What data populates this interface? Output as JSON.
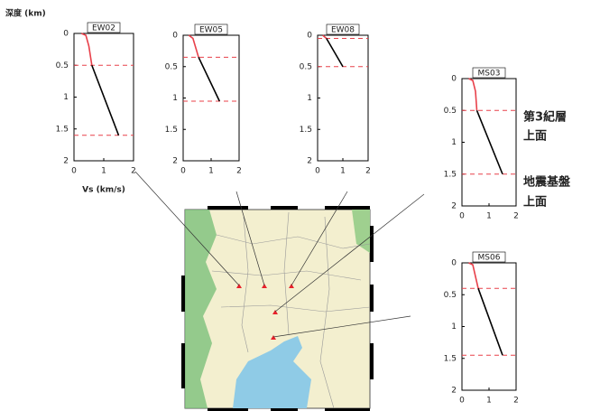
{
  "chart_data": [
    {
      "type": "line",
      "title": "EW02",
      "ylabel": "深度 (km)",
      "xlabel": "Vs (km/s)",
      "x": [
        0.25,
        0.4,
        0.5,
        0.6,
        1.5
      ],
      "series": [
        {
          "color": "#e8404a",
          "values": [
            0,
            0.03,
            0.2,
            0.5,
            null
          ]
        },
        {
          "color": "#000000",
          "values": [
            null,
            null,
            null,
            0.5,
            1.6
          ]
        }
      ],
      "xlim": [
        0,
        2
      ],
      "xticks": [
        0,
        1,
        2
      ],
      "ylim": [
        0,
        2
      ],
      "yticks": [
        0,
        0.5,
        1,
        1.5,
        2
      ],
      "y_inverted": true,
      "hlines": [
        0.5,
        1.6
      ],
      "hline_color": "#e8404a"
    },
    {
      "type": "line",
      "title": "EW05",
      "x": [
        0.2,
        0.35,
        0.55,
        1.3
      ],
      "series": [
        {
          "color": "#e8404a",
          "values": [
            0,
            0.05,
            0.35,
            null
          ]
        },
        {
          "color": "#000000",
          "values": [
            null,
            null,
            0.35,
            1.05
          ]
        }
      ],
      "xlim": [
        0,
        2
      ],
      "xticks": [
        0,
        1,
        2
      ],
      "ylim": [
        0,
        2
      ],
      "yticks": [
        0,
        0.5,
        1,
        1.5,
        2
      ],
      "y_inverted": true,
      "hlines": [
        0.35,
        1.05
      ],
      "hline_color": "#e8404a"
    },
    {
      "type": "line",
      "title": "EW08",
      "x": [
        0.2,
        0.35,
        1.0
      ],
      "series": [
        {
          "color": "#e8404a",
          "values": [
            0,
            0.05,
            null
          ]
        },
        {
          "color": "#000000",
          "values": [
            null,
            0.05,
            0.5
          ]
        }
      ],
      "xlim": [
        0,
        2
      ],
      "xticks": [
        0,
        1,
        2
      ],
      "ylim": [
        0,
        2
      ],
      "yticks": [
        0,
        0.5,
        1,
        1.5,
        2
      ],
      "y_inverted": true,
      "hlines": [
        0.05,
        0.5
      ],
      "hline_color": "#e8404a"
    },
    {
      "type": "line",
      "title": "MS03",
      "x": [
        0.25,
        0.4,
        0.5,
        0.55,
        1.5
      ],
      "series": [
        {
          "color": "#e8404a",
          "values": [
            0,
            0.03,
            0.2,
            0.5,
            null
          ]
        },
        {
          "color": "#000000",
          "values": [
            null,
            null,
            null,
            0.5,
            1.5
          ]
        }
      ],
      "xlim": [
        0,
        2
      ],
      "xticks": [
        0,
        1,
        2
      ],
      "ylim": [
        0,
        2
      ],
      "yticks": [
        0,
        0.5,
        1,
        1.5,
        2
      ],
      "y_inverted": true,
      "hlines": [
        0.5,
        1.5
      ],
      "hline_color": "#e8404a",
      "annotations": [
        "第3紀層",
        "上面",
        "地震基盤",
        "上面"
      ]
    },
    {
      "type": "line",
      "title": "MS06",
      "x": [
        0.25,
        0.4,
        0.6,
        1.5
      ],
      "series": [
        {
          "color": "#e8404a",
          "values": [
            0,
            0.03,
            0.4,
            null
          ]
        },
        {
          "color": "#000000",
          "values": [
            null,
            null,
            0.4,
            1.45
          ]
        }
      ],
      "xlim": [
        0,
        2
      ],
      "xticks": [
        0,
        1,
        2
      ],
      "ylim": [
        0,
        2
      ],
      "yticks": [
        0,
        0.5,
        1,
        1.5,
        2
      ],
      "y_inverted": true,
      "hlines": [
        0.4,
        1.45
      ],
      "hline_color": "#e8404a"
    }
  ]
}
